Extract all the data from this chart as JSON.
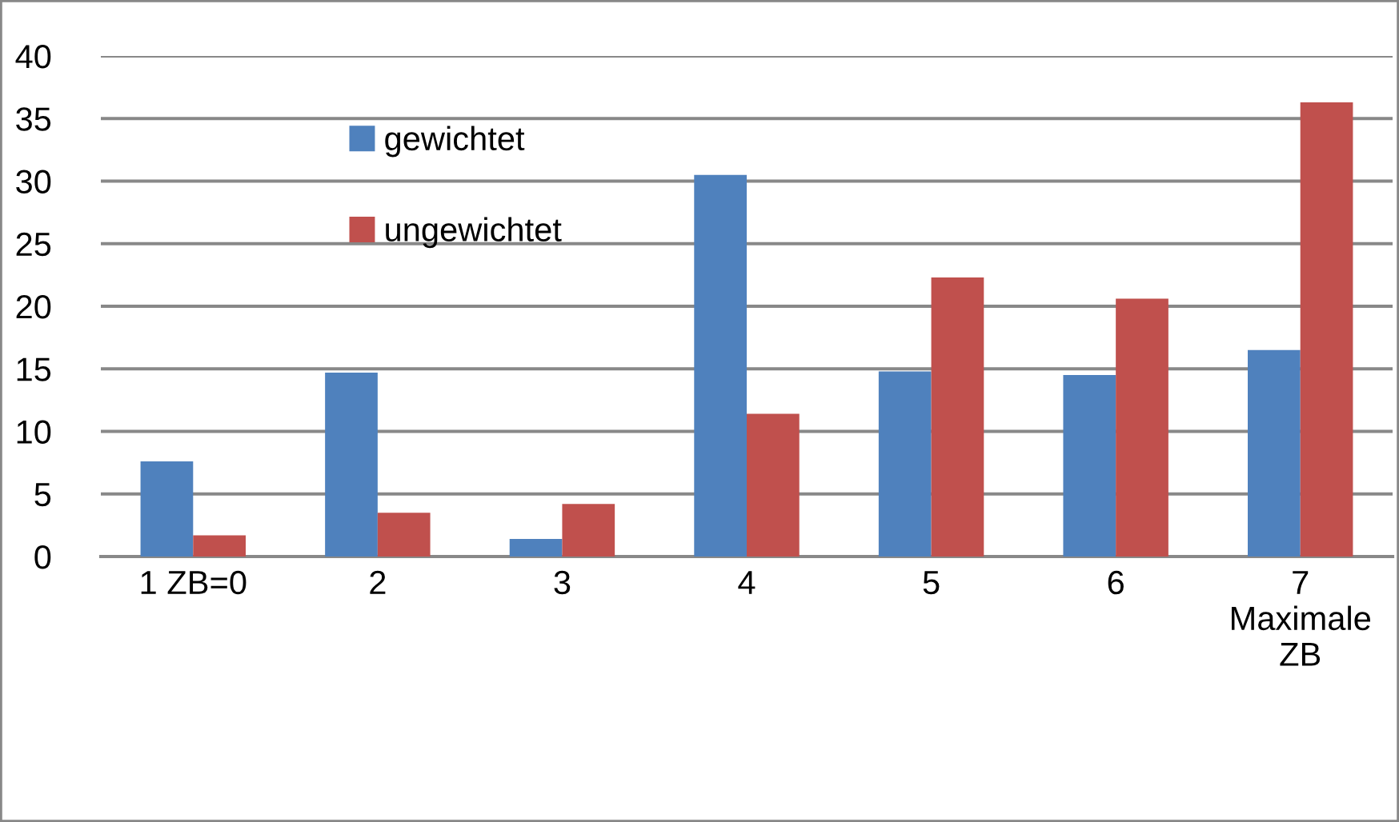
{
  "chart_data": {
    "type": "bar",
    "categories": [
      "1 ZB=0",
      "2",
      "3",
      "4",
      "5",
      "6",
      "7\nMaximale\nZB"
    ],
    "series": [
      {
        "name": "gewichtet",
        "color": "#4f81bd",
        "values": [
          7.6,
          14.7,
          1.4,
          30.5,
          14.8,
          14.5,
          16.5
        ]
      },
      {
        "name": "ungewichtet",
        "color": "#c0504d",
        "values": [
          1.7,
          3.5,
          4.2,
          11.4,
          22.3,
          20.6,
          36.3
        ]
      }
    ],
    "ylim": [
      0,
      40
    ],
    "yticks": [
      0,
      5,
      10,
      15,
      20,
      25,
      30,
      35,
      40
    ],
    "grid": "y",
    "legend": "top left"
  }
}
